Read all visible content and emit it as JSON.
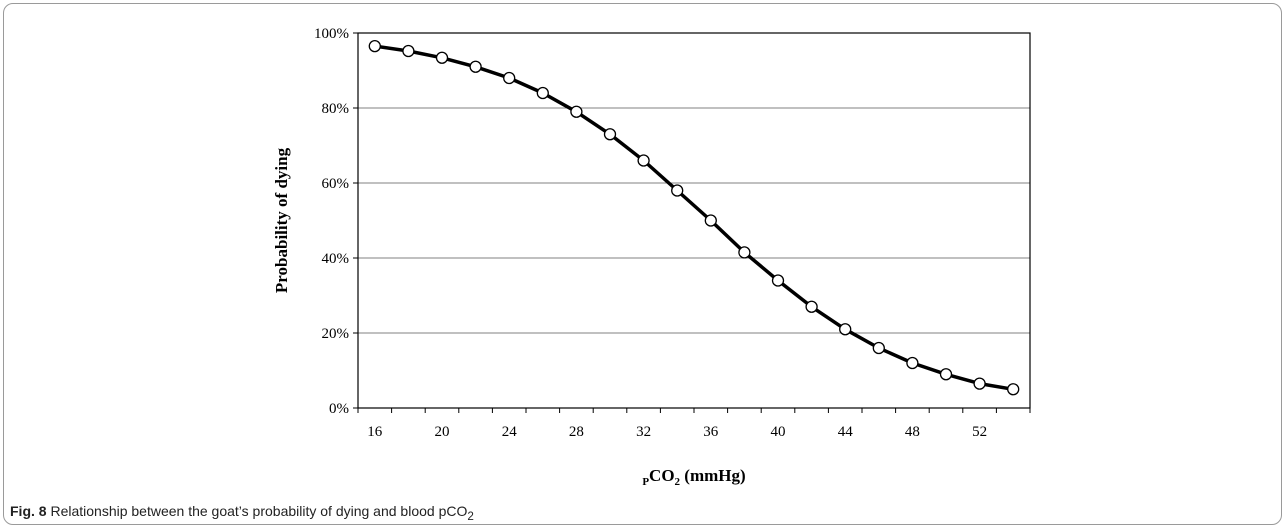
{
  "chart_data": {
    "type": "line",
    "xlabel_main": "CO",
    "xlabel_prefix_sub": "P",
    "xlabel_sub": "2",
    "xlabel_unit": " (mmHg)",
    "ylabel": "Probability of dying",
    "xlim": [
      15,
      55
    ],
    "ylim": [
      0,
      100
    ],
    "x_ticks": [
      16,
      20,
      24,
      28,
      32,
      36,
      40,
      44,
      48,
      52
    ],
    "y_ticks": [
      0,
      20,
      40,
      60,
      80,
      100
    ],
    "y_tick_labels": [
      "0%",
      "20%",
      "40%",
      "60%",
      "80%",
      "100%"
    ],
    "grid": "horizontal",
    "series": [
      {
        "x": [
          16,
          18,
          20,
          22,
          24,
          26,
          28,
          30,
          32,
          34,
          36,
          38,
          40,
          42,
          44,
          46,
          48,
          50,
          52,
          54
        ],
        "values": [
          96.5,
          95.2,
          93.4,
          91.0,
          88.0,
          84.0,
          79.0,
          73.0,
          66.0,
          58.0,
          50.0,
          41.5,
          34.0,
          27.0,
          21.0,
          16.0,
          12.0,
          9.0,
          6.5,
          5.0
        ],
        "color": "#000000",
        "marker_fill": "#ffffff"
      }
    ]
  },
  "caption": {
    "label": "Fig. 8",
    "text": " Relationship between the goat’s probability of dying and blood pCO",
    "subscript": "2"
  }
}
